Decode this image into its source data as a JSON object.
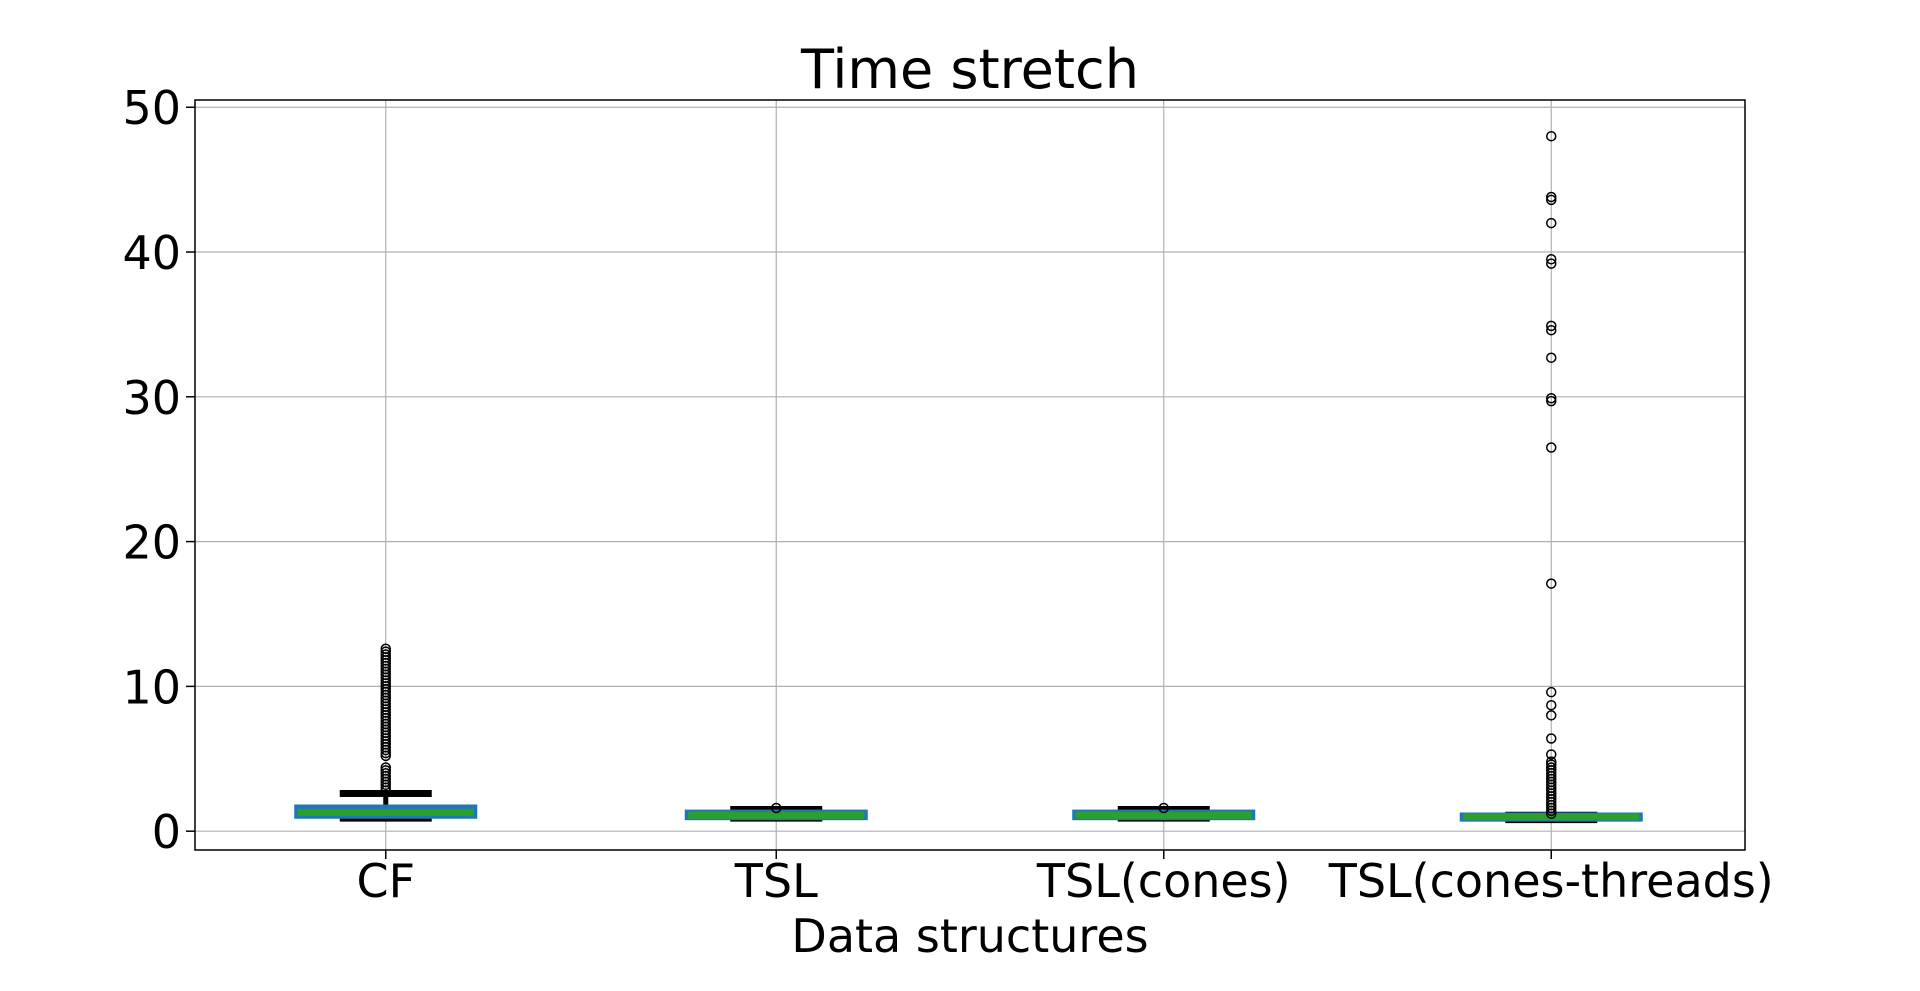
{
  "chart_data": {
    "type": "box",
    "title": "Time stretch",
    "xlabel": "Data structures",
    "ylabel": "",
    "ylim": [
      -1.3,
      50.5
    ],
    "yticks": [
      0,
      10,
      20,
      30,
      40,
      50
    ],
    "grid": true,
    "categories": [
      "CF",
      "TSL",
      "TSL(cones)",
      "TSL(cones-threads)"
    ],
    "boxes": [
      {
        "category": "CF",
        "min": 0.9,
        "q1": 1.1,
        "median": 1.3,
        "q3": 1.6,
        "max": 2.6,
        "outliers": [
          2.8,
          3.0,
          3.2,
          3.4,
          3.6,
          3.8,
          4.0,
          4.2,
          4.4,
          5.2,
          5.4,
          5.6,
          5.8,
          6.0,
          6.2,
          6.4,
          6.6,
          6.8,
          7.0,
          7.2,
          7.4,
          7.6,
          7.8,
          8.0,
          8.2,
          8.4,
          8.6,
          8.8,
          9.0,
          9.2,
          9.4,
          9.6,
          9.8,
          10.0,
          10.2,
          10.4,
          10.6,
          10.8,
          11.0,
          11.2,
          11.4,
          11.6,
          11.8,
          12.0,
          12.2,
          12.4,
          12.6
        ]
      },
      {
        "category": "TSL",
        "min": 0.9,
        "q1": 1.0,
        "median": 1.1,
        "q3": 1.25,
        "max": 1.5,
        "outliers": [
          1.6
        ]
      },
      {
        "category": "TSL(cones)",
        "min": 0.9,
        "q1": 1.0,
        "median": 1.1,
        "q3": 1.25,
        "max": 1.5,
        "outliers": [
          1.6
        ]
      },
      {
        "category": "TSL(cones-threads)",
        "min": 0.8,
        "q1": 0.9,
        "median": 1.0,
        "q3": 1.05,
        "max": 1.1,
        "outliers": [
          1.2,
          1.4,
          1.6,
          1.8,
          2.0,
          2.2,
          2.4,
          2.6,
          2.8,
          3.0,
          3.2,
          3.4,
          3.6,
          3.8,
          4.0,
          4.2,
          4.4,
          4.6,
          4.8,
          5.3,
          6.4,
          8.0,
          8.7,
          9.6,
          17.1,
          26.5,
          29.7,
          29.9,
          32.7,
          34.6,
          34.9,
          39.2,
          39.5,
          42.0,
          43.6,
          43.8,
          48.0
        ]
      }
    ],
    "colors": {
      "box": "#1f77b4",
      "median": "#2ca02c",
      "whisker": "#000000",
      "grid": "#b0b0b0"
    }
  }
}
